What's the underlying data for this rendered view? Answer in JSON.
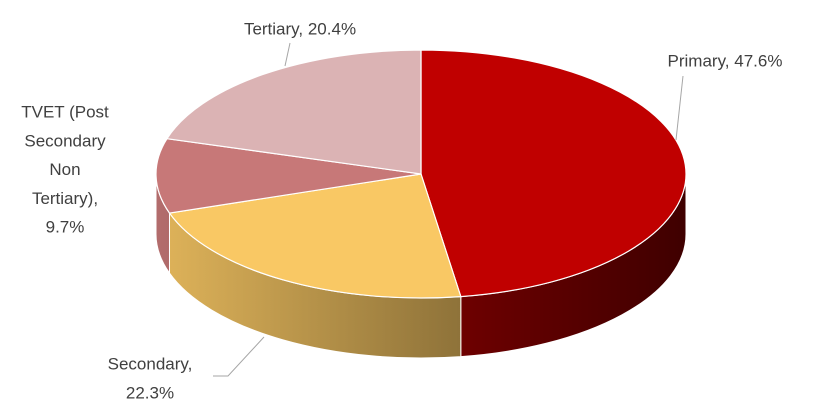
{
  "chart_data": {
    "type": "pie",
    "values": [
      47.6,
      22.3,
      9.7,
      20.4
    ],
    "value_labels": [
      [
        "Primary, 47.6%"
      ],
      [
        "Secondary,",
        "22.3%"
      ],
      [
        "TVET (Post",
        "Secondary",
        "Non",
        "Tertiary),",
        "9.7%"
      ],
      [
        "Tertiary, 20.4%"
      ]
    ],
    "colors": [
      "#c00000",
      "#f9c864",
      "#c77878",
      "#dbb3b4"
    ],
    "three_d": true
  }
}
